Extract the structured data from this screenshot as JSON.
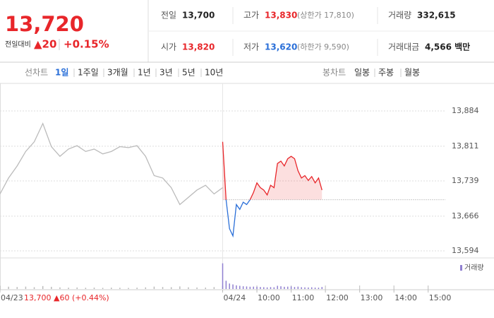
{
  "header": {
    "price": "13,720",
    "change_label": "전일대비",
    "change": "▲20",
    "change_pct": "+0.15%",
    "stats": [
      {
        "label": "전일",
        "value": "13,700"
      },
      {
        "label": "고가",
        "value": "13,830",
        "extra": "(상한가 17,810)"
      },
      {
        "label": "거래량",
        "value": "332,615"
      },
      {
        "label": "시가",
        "value": "13,820"
      },
      {
        "label": "저가",
        "value": "13,620",
        "extra": "(하한가 9,590)"
      },
      {
        "label": "거래대금",
        "value": "4,566 백만"
      }
    ]
  },
  "tabs": {
    "line_label": "선차트",
    "line_items": [
      "1일",
      "1주일",
      "3개월",
      "1년",
      "3년",
      "5년",
      "10년"
    ],
    "candle_label": "봉차트",
    "candle_items": [
      "일봉",
      "주봉",
      "월봉"
    ]
  },
  "chart_data": {
    "type": "line",
    "ylim": [
      13594,
      13884
    ],
    "yticks": [
      {
        "value": 13594,
        "label": "13,594"
      },
      {
        "value": 13666,
        "label": "13,666"
      },
      {
        "value": 13739,
        "label": "13,739"
      },
      {
        "value": 13811,
        "label": "13,811"
      },
      {
        "value": 13884,
        "label": "13,884"
      }
    ],
    "xlim": [
      0,
      13
    ],
    "xticks": [
      {
        "value": 0,
        "label": "04/23"
      },
      {
        "value": 6.5,
        "label": "04/24"
      },
      {
        "value": 7.5,
        "label": "10:00"
      },
      {
        "value": 8.5,
        "label": "11:00"
      },
      {
        "value": 9.5,
        "label": "12:00"
      },
      {
        "value": 10.5,
        "label": "13:00"
      },
      {
        "value": 11.5,
        "label": "14:00"
      },
      {
        "value": 12.5,
        "label": "15:00"
      }
    ],
    "baseline": 13700,
    "prev_label": "13,700 ▲60 (+0.44%)",
    "volume_label": "거래량",
    "volume_ylim": [
      0,
      30000
    ],
    "series": [
      {
        "color": "#bbbbbb",
        "x": [
          0,
          0.25,
          0.5,
          0.75,
          1,
          1.25,
          1.5,
          1.75,
          2,
          2.25,
          2.5,
          2.75,
          3,
          3.25,
          3.5,
          3.75,
          4,
          4.25,
          4.5,
          4.75,
          5,
          5.25,
          5.5,
          5.75,
          6,
          6.25,
          6.5
        ],
        "values": [
          13712,
          13745,
          13770,
          13800,
          13820,
          13858,
          13810,
          13790,
          13805,
          13812,
          13800,
          13805,
          13795,
          13800,
          13810,
          13808,
          13812,
          13790,
          13750,
          13745,
          13725,
          13690,
          13705,
          13720,
          13730,
          13712,
          13725
        ],
        "volume": [
          3000,
          2500,
          2200,
          2600,
          2000,
          3200,
          2400,
          1800,
          1500,
          1700,
          1400,
          1600,
          1300,
          1500,
          1400,
          1200,
          1500,
          1800,
          2600,
          2200,
          2000,
          2800,
          1900,
          1700,
          1600,
          2100,
          3500
        ]
      },
      {
        "color": "#e8262a",
        "color_below": "#2a6fd8",
        "volume_color": "#8f7fd0",
        "x": [
          6.5,
          6.6,
          6.7,
          6.8,
          6.9,
          7,
          7.1,
          7.2,
          7.3,
          7.4,
          7.5,
          7.6,
          7.7,
          7.8,
          7.9,
          8,
          8.1,
          8.2,
          8.3,
          8.4,
          8.5,
          8.6,
          8.7,
          8.8,
          8.9,
          9,
          9.1,
          9.2,
          9.3,
          9.4
        ],
        "values": [
          13820,
          13700,
          13640,
          13625,
          13690,
          13680,
          13695,
          13690,
          13700,
          13715,
          13735,
          13725,
          13720,
          13710,
          13730,
          13725,
          13775,
          13780,
          13770,
          13785,
          13790,
          13785,
          13760,
          13745,
          13750,
          13740,
          13748,
          13735,
          13745,
          13720
        ],
        "volume": [
          28000,
          9000,
          6000,
          5000,
          4000,
          3500,
          3000,
          2800,
          2500,
          2600,
          2400,
          2200,
          2000,
          1800,
          2100,
          1900,
          3500,
          3000,
          2400,
          2600,
          2800,
          2200,
          2600,
          2000,
          1800,
          1700,
          1900,
          1600,
          1500,
          2200
        ]
      }
    ]
  }
}
